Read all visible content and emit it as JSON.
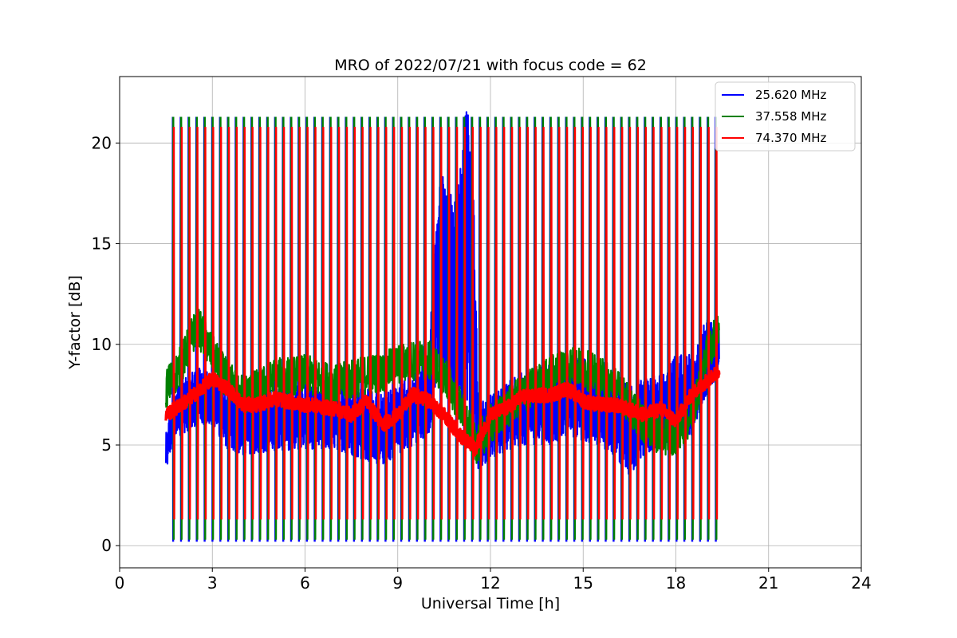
{
  "chart_data": {
    "type": "line",
    "title": "MRO of 2022/07/21 with focus code = 62",
    "xlabel": "Universal Time [h]",
    "ylabel": "Y-factor [dB]",
    "xlim": [
      0,
      24
    ],
    "ylim": [
      -1.1,
      23.3
    ],
    "xticks": [
      0,
      3,
      6,
      9,
      12,
      15,
      18,
      21,
      24
    ],
    "yticks": [
      0,
      5,
      10,
      15,
      20
    ],
    "grid": true,
    "legend_position": "top-right",
    "data_start_hour": 1.5,
    "data_end_hour": 19.4,
    "series": [
      {
        "name": "25.620 MHz",
        "color": "#0000ff",
        "pulse_peak": 21.3,
        "pulse_floor": 0.2,
        "envelope": {
          "x": [
            1.5,
            1.7,
            2.0,
            2.5,
            3.0,
            3.5,
            4.0,
            4.5,
            5.0,
            6.0,
            7.0,
            7.5,
            8.0,
            8.5,
            9.0,
            9.5,
            10.0,
            10.3,
            10.6,
            10.9,
            11.2,
            11.4,
            11.6,
            12.0,
            13.0,
            14.0,
            14.5,
            15.0,
            15.5,
            16.0,
            16.5,
            17.0,
            17.5,
            18.0,
            18.5,
            19.0,
            19.4
          ],
          "low": [
            3.6,
            5.0,
            5.5,
            6.0,
            6.0,
            4.8,
            4.5,
            4.6,
            4.7,
            4.8,
            4.8,
            4.5,
            4.2,
            4.0,
            4.5,
            5.0,
            5.5,
            8.0,
            7.5,
            7.0,
            6.0,
            5.0,
            3.8,
            4.3,
            5.0,
            5.0,
            5.5,
            5.2,
            5.0,
            4.5,
            3.5,
            4.5,
            5.0,
            5.3,
            5.5,
            7.5,
            8.5
          ],
          "high": [
            5.8,
            7.0,
            8.5,
            9.0,
            8.6,
            7.8,
            7.4,
            7.5,
            7.8,
            8.0,
            8.0,
            7.8,
            7.8,
            7.5,
            8.0,
            8.5,
            9.5,
            18.0,
            19.2,
            17.0,
            21.5,
            22.2,
            7.0,
            7.5,
            8.6,
            9.0,
            9.5,
            9.3,
            8.8,
            8.5,
            8.0,
            8.5,
            8.6,
            9.5,
            9.5,
            11.3,
            11.0
          ]
        }
      },
      {
        "name": "37.558 MHz",
        "color": "#008000",
        "pulse_peak": 21.3,
        "pulse_floor": 0.3,
        "envelope": {
          "x": [
            1.5,
            2.0,
            2.5,
            3.0,
            3.5,
            4.0,
            4.5,
            5.0,
            6.0,
            7.0,
            8.0,
            8.5,
            9.0,
            9.5,
            10.0,
            10.5,
            11.0,
            11.5,
            12.0,
            13.0,
            14.0,
            14.5,
            15.0,
            16.0,
            16.5,
            17.0,
            17.5,
            18.0,
            18.5,
            19.0,
            19.4
          ],
          "center": [
            7.8,
            9.0,
            11.0,
            9.5,
            8.2,
            7.5,
            7.8,
            8.3,
            8.5,
            8.0,
            8.5,
            8.6,
            9.0,
            9.2,
            9.2,
            8.5,
            7.0,
            5.0,
            6.0,
            7.5,
            8.5,
            9.0,
            8.8,
            8.0,
            7.0,
            6.0,
            5.5,
            5.5,
            6.5,
            9.5,
            10.8
          ],
          "spread": 1.0
        }
      },
      {
        "name": "74.370 MHz",
        "color": "#ff0000",
        "pulse_peak": 20.8,
        "pulse_floor": 1.3,
        "envelope": {
          "x": [
            1.5,
            2.0,
            2.5,
            3.0,
            3.5,
            4.0,
            4.5,
            5.0,
            6.0,
            7.0,
            7.5,
            8.0,
            8.5,
            9.0,
            9.5,
            10.0,
            10.5,
            11.0,
            11.5,
            12.0,
            12.5,
            13.0,
            14.0,
            14.5,
            15.0,
            15.5,
            16.0,
            17.0,
            17.5,
            18.0,
            18.5,
            19.0,
            19.4
          ],
          "center": [
            6.5,
            7.0,
            7.6,
            8.3,
            7.8,
            7.0,
            7.0,
            7.3,
            7.0,
            6.8,
            6.5,
            7.2,
            6.0,
            6.5,
            7.5,
            7.2,
            6.5,
            5.5,
            4.8,
            6.5,
            6.8,
            7.4,
            7.5,
            7.8,
            7.2,
            7.0,
            7.0,
            6.5,
            6.8,
            6.2,
            7.5,
            8.2,
            8.7
          ],
          "spread": 0.35
        }
      }
    ]
  }
}
